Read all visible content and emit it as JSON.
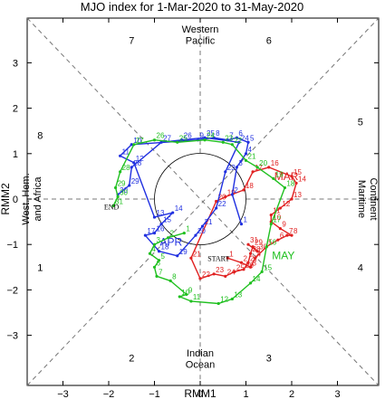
{
  "chart_data": {
    "type": "line",
    "title": "MJO index for 1-Mar-2020 to 31-May-2020",
    "xlabel": "RMM1",
    "ylabel": "RMM2",
    "xlim": [
      -4,
      4
    ],
    "ylim": [
      -4,
      4
    ],
    "xticks": [
      "−3",
      "−2",
      "−1",
      "0",
      "1",
      "2",
      "3"
    ],
    "yticks": [
      "−3",
      "−2",
      "−1",
      "0",
      "1",
      "2",
      "3"
    ],
    "phases": [
      {
        "label": "1",
        "x": -3.5,
        "y": -1.5
      },
      {
        "label": "2",
        "x": -1.5,
        "y": -3.5
      },
      {
        "label": "3",
        "x": 1.5,
        "y": -3.5
      },
      {
        "label": "4",
        "x": 3.5,
        "y": -1.5
      },
      {
        "label": "5",
        "x": 3.5,
        "y": 1.7
      },
      {
        "label": "6",
        "x": 1.5,
        "y": 3.5
      },
      {
        "label": "7",
        "x": -1.5,
        "y": 3.5
      },
      {
        "label": "8",
        "x": -3.5,
        "y": 1.4
      }
    ],
    "regions": {
      "top": [
        "Western",
        "Pacific"
      ],
      "bottom": [
        "Indian",
        "Ocean"
      ],
      "left": [
        "West. Hem.",
        "and Africa"
      ],
      "right": [
        "Maritime",
        "Continent"
      ]
    },
    "markers": {
      "start": "START",
      "end": "END"
    },
    "series": [
      {
        "name": "MAR",
        "color": "#e02020",
        "points": [
          {
            "day": "1",
            "x": 0.6,
            "y": -1.3
          },
          {
            "day": "2",
            "x": 0.9,
            "y": -1.4
          },
          {
            "day": "3",
            "x": 1.1,
            "y": -1.5
          },
          {
            "day": "4",
            "x": 1.2,
            "y": -1.3
          },
          {
            "day": "5",
            "x": 1.45,
            "y": -1.05
          },
          {
            "day": "6",
            "x": 1.7,
            "y": -0.9
          },
          {
            "day": "7",
            "x": 1.9,
            "y": -0.8
          },
          {
            "day": "8",
            "x": 2.0,
            "y": -0.8
          },
          {
            "day": "9",
            "x": 1.75,
            "y": -0.65
          },
          {
            "day": "10",
            "x": 1.55,
            "y": -0.5
          },
          {
            "day": "11",
            "x": 1.55,
            "y": -0.35
          },
          {
            "day": "12",
            "x": 1.75,
            "y": -0.2
          },
          {
            "day": "13",
            "x": 2.0,
            "y": 0.0
          },
          {
            "day": "14",
            "x": 2.1,
            "y": 0.35
          },
          {
            "day": "15",
            "x": 2.0,
            "y": 0.5
          },
          {
            "day": "16",
            "x": 1.5,
            "y": 0.7
          },
          {
            "day": "17",
            "x": 1.15,
            "y": 0.6
          },
          {
            "day": "18",
            "x": 0.95,
            "y": 0.2
          },
          {
            "day": "19",
            "x": 0.55,
            "y": 0.05
          },
          {
            "day": "20",
            "x": 0.35,
            "y": -0.05
          },
          {
            "day": "21",
            "x": -0.2,
            "y": -1.3
          },
          {
            "day": "22",
            "x": 0.0,
            "y": -1.75
          },
          {
            "day": "23",
            "x": 0.3,
            "y": -1.65
          },
          {
            "day": "24",
            "x": 0.55,
            "y": -1.7
          },
          {
            "day": "25",
            "x": 0.75,
            "y": -1.6
          },
          {
            "day": "26",
            "x": 0.95,
            "y": -1.55
          },
          {
            "day": "27",
            "x": 1.05,
            "y": -1.4
          },
          {
            "day": "28",
            "x": 1.1,
            "y": -1.2
          },
          {
            "day": "29",
            "x": 1.15,
            "y": -1.05
          },
          {
            "day": "30",
            "x": 1.25,
            "y": -1.15
          },
          {
            "day": "31",
            "x": 1.05,
            "y": -1.0
          }
        ]
      },
      {
        "name": "APR",
        "color": "#2030e0",
        "points": [
          {
            "day": "1",
            "x": 0.9,
            "y": -0.55
          },
          {
            "day": "2",
            "x": 0.7,
            "y": 0.1
          },
          {
            "day": "3",
            "x": 0.8,
            "y": 0.7
          },
          {
            "day": "4",
            "x": 1.0,
            "y": 1.0
          },
          {
            "day": "5",
            "x": 1.05,
            "y": 1.25
          },
          {
            "day": "6",
            "x": 0.8,
            "y": 1.35
          },
          {
            "day": "7",
            "x": 0.6,
            "y": 1.3
          },
          {
            "day": "8",
            "x": 0.3,
            "y": 1.35
          },
          {
            "day": "9",
            "x": -0.05,
            "y": 1.3
          },
          {
            "day": "10",
            "x": -1.5,
            "y": 1.2
          },
          {
            "day": "11",
            "x": -1.75,
            "y": 0.95
          },
          {
            "day": "12",
            "x": -1.45,
            "y": 0.8
          },
          {
            "day": "13",
            "x": -1.0,
            "y": -0.4
          },
          {
            "day": "14",
            "x": -0.6,
            "y": -0.3
          },
          {
            "day": "15",
            "x": -0.85,
            "y": -0.55
          },
          {
            "day": "16",
            "x": -1.0,
            "y": -0.75
          },
          {
            "day": "17",
            "x": -1.2,
            "y": -0.8
          },
          {
            "day": "18",
            "x": -0.9,
            "y": -1.15
          },
          {
            "day": "19",
            "x": -0.5,
            "y": -1.25
          },
          {
            "day": "20",
            "x": -0.1,
            "y": -0.8
          },
          {
            "day": "21",
            "x": 0.05,
            "y": -0.6
          },
          {
            "day": "22",
            "x": 0.35,
            "y": -0.2
          },
          {
            "day": "23",
            "x": 0.55,
            "y": 0.6
          },
          {
            "day": "24",
            "x": 0.85,
            "y": 1.25
          },
          {
            "day": "25",
            "x": 0.1,
            "y": 1.35
          },
          {
            "day": "26",
            "x": -0.4,
            "y": 1.3
          },
          {
            "day": "27",
            "x": -0.85,
            "y": 1.25
          },
          {
            "day": "28",
            "x": -1.5,
            "y": 0.7
          },
          {
            "day": "29",
            "x": -1.55,
            "y": 0.3
          },
          {
            "day": "30",
            "x": -1.8,
            "y": 0.1
          }
        ]
      },
      {
        "name": "MAY",
        "color": "#20c020",
        "points": [
          {
            "day": "1",
            "x": -0.35,
            "y": -0.75
          },
          {
            "day": "2",
            "x": -0.7,
            "y": -0.85
          },
          {
            "day": "3",
            "x": -1.0,
            "y": -1.0
          },
          {
            "day": "4",
            "x": -1.1,
            "y": -1.2
          },
          {
            "day": "5",
            "x": -0.9,
            "y": -1.35
          },
          {
            "day": "6",
            "x": -1.0,
            "y": -1.5
          },
          {
            "day": "7",
            "x": -0.95,
            "y": -1.7
          },
          {
            "day": "8",
            "x": -0.65,
            "y": -1.8
          },
          {
            "day": "9",
            "x": -0.3,
            "y": -2.1
          },
          {
            "day": "10",
            "x": -0.45,
            "y": -2.15
          },
          {
            "day": "11",
            "x": -0.2,
            "y": -2.25
          },
          {
            "day": "12",
            "x": 0.4,
            "y": -2.3
          },
          {
            "day": "13",
            "x": 0.7,
            "y": -2.2
          },
          {
            "day": "14",
            "x": 1.1,
            "y": -1.85
          },
          {
            "day": "15",
            "x": 1.35,
            "y": -1.6
          },
          {
            "day": "16",
            "x": 1.45,
            "y": -1.05
          },
          {
            "day": "17",
            "x": 1.55,
            "y": -0.55
          },
          {
            "day": "18",
            "x": 1.85,
            "y": 0.25
          },
          {
            "day": "19",
            "x": 1.6,
            "y": 0.45
          },
          {
            "day": "20",
            "x": 1.25,
            "y": 0.7
          },
          {
            "day": "21",
            "x": 1.0,
            "y": 0.85
          },
          {
            "day": "22",
            "x": 0.7,
            "y": 1.2
          },
          {
            "day": "23",
            "x": 0.5,
            "y": 1.25
          },
          {
            "day": "24",
            "x": 0.1,
            "y": 1.3
          },
          {
            "day": "25",
            "x": -0.5,
            "y": 1.25
          },
          {
            "day": "26",
            "x": -1.0,
            "y": 1.3
          },
          {
            "day": "27",
            "x": -1.45,
            "y": 1.2
          },
          {
            "day": "28",
            "x": -1.75,
            "y": 0.6
          },
          {
            "day": "29",
            "x": -1.85,
            "y": 0.25
          },
          {
            "day": "30",
            "x": -1.8,
            "y": 0.05
          },
          {
            "day": "31",
            "x": -1.9,
            "y": -0.15
          }
        ]
      }
    ]
  }
}
